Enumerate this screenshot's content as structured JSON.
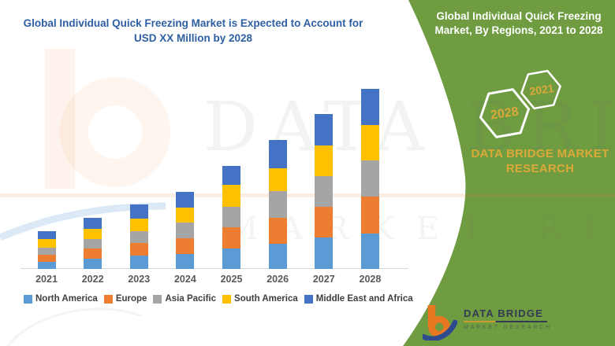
{
  "left_panel": {
    "title_line1": "Global Individual Quick Freezing Market is Expected to Account for",
    "title_line2": "USD XX Million by 2028",
    "title_color": "#2E5FA3"
  },
  "right_panel": {
    "background_color": "#6F9C41",
    "accent_gold": "#DBA83A",
    "title_line1": "Global Individual Quick Freezing",
    "title_line2": "Market, By Regions, 2021 to 2028",
    "hexagon_back": {
      "label": "2021"
    },
    "hexagon_front": {
      "label": "2028"
    },
    "brand_line1": "DATA BRIDGE MARKET",
    "brand_line2": "RESEARCH"
  },
  "logo": {
    "name": "DATA BRIDGE",
    "subtitle": "MARKET RESEARCH",
    "mark_orange": "#E87722",
    "mark_blue": "#2E4B8F"
  },
  "watermark": {
    "line1": "DATA BRIDGE",
    "line2": "MARKET RESEARCH"
  },
  "chart_data": {
    "type": "bar",
    "stacked": true,
    "title": "Global Individual Quick Freezing Market is Expected to Account for USD XX Million by 2028",
    "subtitle": "Global Individual Quick Freezing Market, By Regions, 2021 to 2028",
    "categories": [
      "2021",
      "2022",
      "2023",
      "2024",
      "2025",
      "2026",
      "2027",
      "2028"
    ],
    "series": [
      {
        "name": "North America",
        "color": "#5B9BD5",
        "values": [
          9,
          13,
          17,
          19,
          26,
          32,
          40,
          45
        ]
      },
      {
        "name": "Europe",
        "color": "#ED7D31",
        "values": [
          9,
          13,
          16,
          20,
          27,
          33,
          39,
          47
        ]
      },
      {
        "name": "Asia Pacific",
        "color": "#A5A5A5",
        "values": [
          9,
          12,
          15,
          20,
          26,
          34,
          39,
          46
        ]
      },
      {
        "name": "South America",
        "color": "#FFC000",
        "values": [
          11,
          13,
          16,
          19,
          28,
          29,
          39,
          45
        ]
      },
      {
        "name": "Middle East and Africa",
        "color": "#4472C4",
        "values": [
          10,
          14,
          18,
          20,
          24,
          36,
          40,
          46
        ]
      }
    ],
    "stack_totals": [
      48,
      65,
      82,
      98,
      131,
      164,
      197,
      229
    ],
    "xlabel": "",
    "ylabel": "",
    "value_unit": "USD Million (XX — undisclosed; values are relative estimates read from bar heights)",
    "ylim": [
      0,
      240
    ],
    "grid": false,
    "y_axis_visible": false,
    "legend_position": "bottom"
  }
}
